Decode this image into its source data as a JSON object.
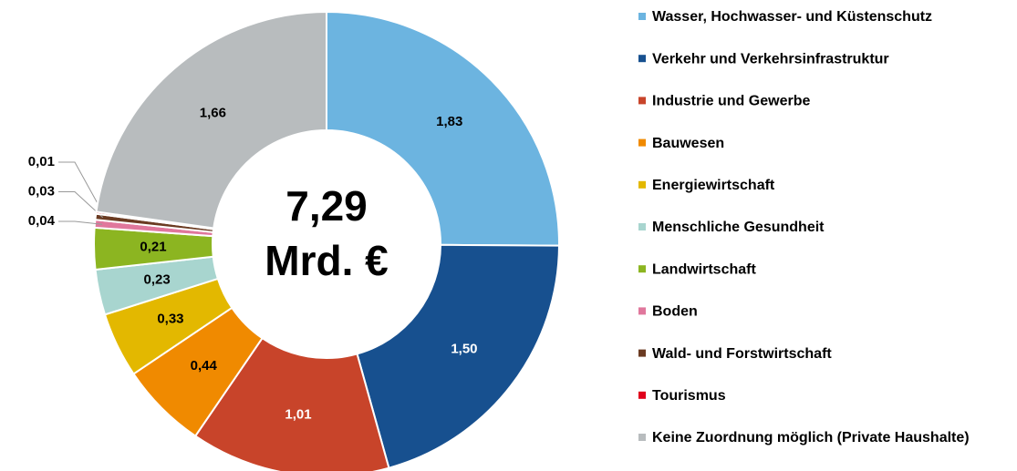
{
  "chart_data": {
    "type": "donut",
    "center_text": "7,29",
    "center_unit": "Mrd. €",
    "categories": [
      "Wasser, Hochwasser- und Küstenschutz",
      "Verkehr und Verkehrsinfrastruktur",
      "Industrie und Gewerbe",
      "Bauwesen",
      "Energiewirtschaft",
      "Menschliche Gesundheit",
      "Landwirtschaft",
      "Boden",
      "Wald- und Forstwirtschaft",
      "Tourismus",
      "Keine Zuordnung möglich (Private Haushalte)"
    ],
    "values": [
      1.83,
      1.5,
      1.01,
      0.44,
      0.33,
      0.23,
      0.21,
      0.04,
      0.03,
      0.01,
      1.66
    ],
    "value_labels": [
      "1,83",
      "1,50",
      "1,01",
      "0,44",
      "0,33",
      "0,23",
      "0,21",
      "0,04",
      "0,03",
      "0,01",
      "1,66"
    ],
    "colors": [
      "#6cb4e0",
      "#17508f",
      "#c8442a",
      "#f08a00",
      "#e3b800",
      "#a8d5cf",
      "#8cb521",
      "#e0779c",
      "#6b3b22",
      "#e0001b",
      "#b8bcbe"
    ],
    "legend": "right"
  }
}
